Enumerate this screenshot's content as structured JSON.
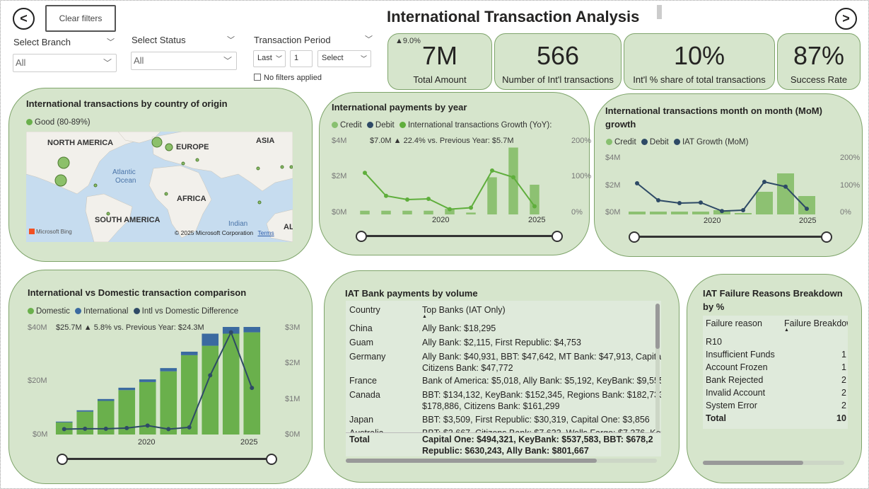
{
  "header": {
    "title": "International Transaction Analysis",
    "clear_filters": "Clear filters",
    "nav_left": "<",
    "nav_right": ">"
  },
  "filters": {
    "branch": {
      "label": "Select Branch",
      "value": "All"
    },
    "status": {
      "label": "Select Status",
      "value": "All"
    },
    "period": {
      "label": "Transaction Period",
      "mode": "Last",
      "count": "1",
      "unit": "Select",
      "note": "No filters applied"
    }
  },
  "kpis": [
    {
      "value": "7M",
      "label": "Total Amount",
      "delta": "▲9.0%"
    },
    {
      "value": "566",
      "label": "Number of Int'l transactions"
    },
    {
      "value": "10%",
      "label": "Int'l % share of total transactions"
    },
    {
      "value": "87%",
      "label": "Success Rate"
    }
  ],
  "map": {
    "title": "International transactions by country of origin",
    "legend": "Good (80-89%)",
    "labels": {
      "na": "NORTH AMERICA",
      "eu": "EUROPE",
      "asia": "ASIA",
      "atl": "Atlantic",
      "ocean": "Ocean",
      "af": "AFRICA",
      "sa": "SOUTH AMERICA",
      "ind": "Indian",
      "al": "AL"
    },
    "copyright": "© 2025 Microsoft Corporation",
    "terms": "Terms",
    "bing": "Microsoft Bing",
    "colors": {
      "sea": "#c6dcef",
      "land": "#f2f0eb",
      "bubble": "#8cc06a"
    }
  },
  "colors": {
    "credit": "#88c070",
    "debit": "#2e4a66",
    "growth": "#5fae3c",
    "bar": "#6ab04c",
    "bar_light": "#8dc172",
    "intl": "#3b6aa0"
  },
  "yearly": {
    "title": "International payments by year",
    "legend": [
      "Credit",
      "Debit",
      "International transactions Growth (YoY):"
    ],
    "annotation": "$7.0M ▲ 22.4% vs. Previous Year: $5.7M",
    "y_left": [
      "$4M",
      "$2M",
      "$0M"
    ],
    "y_right": [
      "200%",
      "100%",
      "0%"
    ],
    "x_ticks": [
      "2020",
      "2025"
    ]
  },
  "monthly": {
    "title": "International transactions month on month (MoM) growth",
    "legend": [
      "Credit",
      "Debit",
      "IAT Growth (MoM)"
    ],
    "y_left": [
      "$4M",
      "$2M",
      "$0M"
    ],
    "y_right": [
      "200%",
      "100%",
      "0%"
    ],
    "x_ticks": [
      "2020",
      "2025"
    ]
  },
  "comparison": {
    "title": "International vs Domestic transaction comparison",
    "legend": [
      "Domestic",
      "International",
      "Intl vs Domestic Difference"
    ],
    "annotation": "$25.7M ▲ 5.8% vs. Previous Year: $24.3M",
    "y_left": [
      "$40M",
      "$20M",
      "$0M"
    ],
    "y_right": [
      "$3M",
      "$2M",
      "$1M",
      "$0M"
    ],
    "x_ticks": [
      "2020",
      "2025"
    ]
  },
  "bank_table": {
    "title": "IAT Bank payments by volume",
    "headers": [
      "Country",
      "Top Banks (IAT Only)"
    ],
    "rows": [
      {
        "country": "China",
        "banks": "Ally Bank: $18,295",
        "banks2": ""
      },
      {
        "country": "Guam",
        "banks": "Ally Bank: $2,115, First Republic: $4,753",
        "banks2": ""
      },
      {
        "country": "Germany",
        "banks": "Ally Bank: $40,931, BBT: $47,642, MT Bank: $47,913, Capital",
        "banks2": "Citizens Bank: $47,772"
      },
      {
        "country": "France",
        "banks": "Bank of America: $5,018, Ally Bank: $5,192, KeyBank: $9,555",
        "banks2": ""
      },
      {
        "country": "Canada",
        "banks": "BBT: $134,132, KeyBank: $152,345, Regions Bank: $182,733,",
        "banks2": "$178,886, Citizens Bank: $161,299"
      },
      {
        "country": "Japan",
        "banks": "BBT: $3,509, First Republic: $30,319, Capital One: $3,856",
        "banks2": ""
      },
      {
        "country": "Australia",
        "banks": "BBT: $3,667, Citizens Bank: $7,633, Wells Fargo: $7,376, Key",
        "banks2": ""
      }
    ],
    "total_label": "Total",
    "total_value": "Capital One: $494,321, KeyBank: $537,583, BBT: $678,2",
    "total_value2": "Republic: $630,243, Ally Bank: $801,667"
  },
  "failure": {
    "title": "IAT Failure Reasons Breakdown by %",
    "headers": [
      "Failure reason",
      "Failure Breakdown"
    ],
    "rows": [
      {
        "reason": "R10",
        "value": ""
      },
      {
        "reason": "Insufficient Funds",
        "value": "1"
      },
      {
        "reason": "Account Frozen",
        "value": "1"
      },
      {
        "reason": "Bank Rejected",
        "value": "2"
      },
      {
        "reason": "Invalid Account",
        "value": "2"
      },
      {
        "reason": "System Error",
        "value": "2"
      }
    ],
    "total_label": "Total",
    "total_value": "10"
  },
  "chart_data": [
    {
      "type": "bar",
      "title": "International payments by year",
      "x": [
        2017,
        2018,
        2019,
        2020,
        2021,
        2022,
        2023,
        2024,
        2025
      ],
      "series": [
        {
          "name": "Credit",
          "values": [
            0.2,
            0.2,
            0.2,
            0.2,
            0.3,
            0.1,
            2.0,
            3.6,
            1.6
          ]
        },
        {
          "name": "Debit",
          "values": [
            0,
            0,
            0,
            0,
            0,
            0,
            0,
            0,
            0
          ]
        },
        {
          "name": "International transactions Growth (YoY):",
          "values": [
            112,
            50,
            40,
            42,
            14,
            18,
            118,
            100,
            22
          ]
        }
      ],
      "ylabel": "",
      "ylim": [
        0,
        4
      ],
      "y2lim": [
        0,
        200
      ]
    },
    {
      "type": "bar",
      "title": "International transactions month on month (MoM) growth",
      "x": [
        2017,
        2018,
        2019,
        2020,
        2021,
        2022,
        2023,
        2024,
        2025
      ],
      "series": [
        {
          "name": "Credit",
          "values": [
            0.2,
            0.2,
            0.2,
            0.2,
            0.3,
            0.1,
            1.6,
            2.9,
            1.3
          ]
        },
        {
          "name": "Debit",
          "values": [
            0,
            0,
            0,
            0,
            0,
            0,
            0,
            0,
            0
          ]
        },
        {
          "name": "IAT Growth (MoM)",
          "values": [
            110,
            50,
            40,
            42,
            12,
            15,
            115,
            98,
            20
          ]
        }
      ],
      "ylim": [
        0,
        4
      ],
      "y2lim": [
        0,
        200
      ]
    },
    {
      "type": "bar",
      "title": "International vs Domestic transaction comparison",
      "x": [
        2016,
        2017,
        2018,
        2019,
        2020,
        2021,
        2022,
        2023,
        2024,
        2025
      ],
      "series": [
        {
          "name": "Domestic",
          "values": [
            4.5,
            8.5,
            12.5,
            16.5,
            19.5,
            23.5,
            29.5,
            33,
            37.5,
            38
          ]
        },
        {
          "name": "International",
          "values": [
            0.3,
            0.5,
            0.7,
            0.9,
            1.0,
            1.2,
            1.3,
            4.5,
            7.0,
            11.5
          ]
        },
        {
          "name": "Intl vs Domestic Difference",
          "values": [
            0.15,
            0.16,
            0.16,
            0.18,
            0.25,
            0.15,
            0.2,
            1.65,
            2.85,
            1.3
          ]
        }
      ],
      "ylim": [
        0,
        40
      ],
      "y2lim": [
        0,
        3
      ]
    }
  ]
}
